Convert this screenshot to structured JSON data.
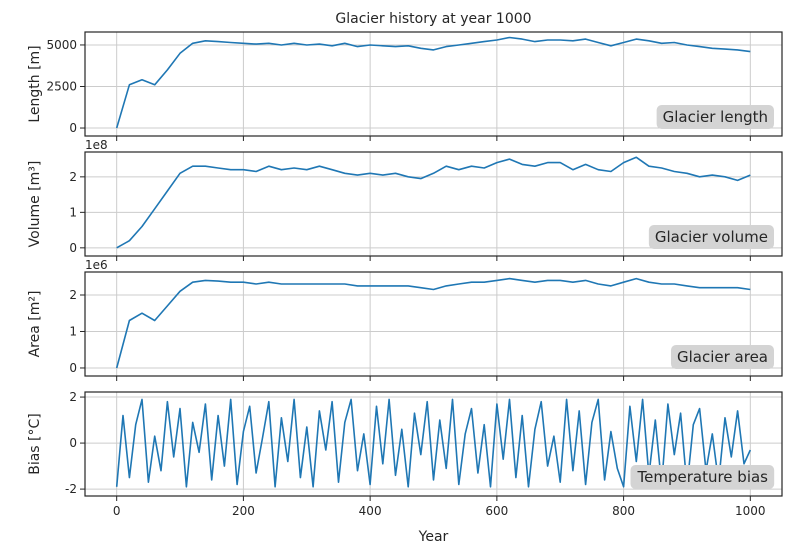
{
  "chart_data": [
    {
      "type": "line",
      "title": "Glacier history at year 1000",
      "ylabel": "Length [m]",
      "annotation": "Glacier length",
      "color": "#1f77b4",
      "grid": true,
      "xlim": [
        -50,
        1050
      ],
      "xticks": [
        0,
        200,
        400,
        600,
        800,
        1000
      ],
      "ylim": [
        -480,
        5780
      ],
      "yticks": [
        0,
        2500,
        5000
      ],
      "x": [
        0,
        20,
        40,
        60,
        80,
        100,
        120,
        140,
        160,
        180,
        200,
        220,
        240,
        260,
        280,
        300,
        320,
        340,
        360,
        380,
        400,
        420,
        440,
        460,
        480,
        500,
        520,
        540,
        560,
        580,
        600,
        620,
        640,
        660,
        680,
        700,
        720,
        740,
        760,
        780,
        800,
        820,
        840,
        860,
        880,
        900,
        920,
        940,
        960,
        980,
        1000
      ],
      "values": [
        0,
        2600,
        2900,
        2600,
        3500,
        4500,
        5100,
        5250,
        5200,
        5150,
        5100,
        5050,
        5100,
        5000,
        5100,
        5000,
        5050,
        4950,
        5100,
        4900,
        5000,
        4950,
        4900,
        4950,
        4800,
        4700,
        4900,
        5000,
        5100,
        5200,
        5300,
        5450,
        5350,
        5200,
        5300,
        5300,
        5250,
        5350,
        5150,
        4950,
        5150,
        5350,
        5250,
        5100,
        5150,
        5000,
        4900,
        4800,
        4750,
        4700,
        4600
      ]
    },
    {
      "type": "line",
      "ylabel": "Volume [m³]",
      "offset_label": "1e8",
      "annotation": "Glacier volume",
      "color": "#1f77b4",
      "grid": true,
      "xlim": [
        -50,
        1050
      ],
      "xticks": [
        0,
        200,
        400,
        600,
        800,
        1000
      ],
      "ylim": [
        -0.23,
        2.7
      ],
      "yticks": [
        0,
        1,
        2
      ],
      "x": [
        0,
        20,
        40,
        60,
        80,
        100,
        120,
        140,
        160,
        180,
        200,
        220,
        240,
        260,
        280,
        300,
        320,
        340,
        360,
        380,
        400,
        420,
        440,
        460,
        480,
        500,
        520,
        540,
        560,
        580,
        600,
        620,
        640,
        660,
        680,
        700,
        720,
        740,
        760,
        780,
        800,
        820,
        840,
        860,
        880,
        900,
        920,
        940,
        960,
        980,
        1000
      ],
      "values": [
        0,
        0.2,
        0.6,
        1.1,
        1.6,
        2.1,
        2.3,
        2.3,
        2.25,
        2.2,
        2.2,
        2.15,
        2.3,
        2.2,
        2.25,
        2.2,
        2.3,
        2.2,
        2.1,
        2.05,
        2.1,
        2.05,
        2.1,
        2.0,
        1.95,
        2.1,
        2.3,
        2.2,
        2.3,
        2.25,
        2.4,
        2.5,
        2.35,
        2.3,
        2.4,
        2.4,
        2.2,
        2.35,
        2.2,
        2.15,
        2.4,
        2.55,
        2.3,
        2.25,
        2.15,
        2.1,
        2.0,
        2.05,
        2.0,
        1.9,
        2.05
      ]
    },
    {
      "type": "line",
      "ylabel": "Area [m²]",
      "offset_label": "1e6",
      "annotation": "Glacier area",
      "color": "#1f77b4",
      "grid": true,
      "xlim": [
        -50,
        1050
      ],
      "xticks": [
        0,
        200,
        400,
        600,
        800,
        1000
      ],
      "ylim": [
        -0.22,
        2.63
      ],
      "yticks": [
        0,
        1,
        2
      ],
      "x": [
        0,
        20,
        40,
        60,
        80,
        100,
        120,
        140,
        160,
        180,
        200,
        220,
        240,
        260,
        280,
        300,
        320,
        340,
        360,
        380,
        400,
        420,
        440,
        460,
        480,
        500,
        520,
        540,
        560,
        580,
        600,
        620,
        640,
        660,
        680,
        700,
        720,
        740,
        760,
        780,
        800,
        820,
        840,
        860,
        880,
        900,
        920,
        940,
        960,
        980,
        1000
      ],
      "values": [
        0,
        1.3,
        1.5,
        1.3,
        1.7,
        2.1,
        2.35,
        2.4,
        2.38,
        2.35,
        2.35,
        2.3,
        2.35,
        2.3,
        2.3,
        2.3,
        2.3,
        2.3,
        2.3,
        2.25,
        2.25,
        2.25,
        2.25,
        2.25,
        2.2,
        2.15,
        2.25,
        2.3,
        2.35,
        2.35,
        2.4,
        2.45,
        2.4,
        2.35,
        2.4,
        2.4,
        2.35,
        2.4,
        2.3,
        2.25,
        2.35,
        2.45,
        2.35,
        2.3,
        2.3,
        2.25,
        2.2,
        2.2,
        2.2,
        2.2,
        2.15
      ]
    },
    {
      "type": "line",
      "ylabel": "Bias [°C]",
      "xlabel": "Year",
      "annotation": "Temperature bias",
      "color": "#1f77b4",
      "grid": true,
      "xlim": [
        -50,
        1050
      ],
      "xticks": [
        0,
        200,
        400,
        600,
        800,
        1000
      ],
      "ylim": [
        -2.3,
        2.22
      ],
      "yticks": [
        -2,
        0,
        2
      ],
      "x": [
        0,
        10,
        20,
        30,
        40,
        50,
        60,
        70,
        80,
        90,
        100,
        110,
        120,
        130,
        140,
        150,
        160,
        170,
        180,
        190,
        200,
        210,
        220,
        230,
        240,
        250,
        260,
        270,
        280,
        290,
        300,
        310,
        320,
        330,
        340,
        350,
        360,
        370,
        380,
        390,
        400,
        410,
        420,
        430,
        440,
        450,
        460,
        470,
        480,
        490,
        500,
        510,
        520,
        530,
        540,
        550,
        560,
        570,
        580,
        590,
        600,
        610,
        620,
        630,
        640,
        650,
        660,
        670,
        680,
        690,
        700,
        710,
        720,
        730,
        740,
        750,
        760,
        770,
        780,
        790,
        800,
        810,
        820,
        830,
        840,
        850,
        860,
        870,
        880,
        890,
        900,
        910,
        920,
        930,
        940,
        950,
        960,
        970,
        980,
        990,
        1000
      ],
      "values": [
        -1.9,
        1.2,
        -1.5,
        0.8,
        1.9,
        -1.7,
        0.3,
        -1.2,
        1.8,
        -0.6,
        1.5,
        -1.9,
        0.9,
        -0.4,
        1.7,
        -1.6,
        1.2,
        -1.0,
        1.9,
        -1.8,
        0.5,
        1.6,
        -1.3,
        0.2,
        1.8,
        -1.9,
        1.1,
        -0.8,
        1.9,
        -1.5,
        0.7,
        -1.9,
        1.4,
        -0.3,
        1.8,
        -1.7,
        0.9,
        1.9,
        -1.2,
        0.4,
        -1.8,
        1.6,
        -0.9,
        1.9,
        -1.4,
        0.6,
        -1.9,
        1.3,
        -0.5,
        1.8,
        -1.6,
        1.0,
        -1.1,
        1.9,
        -1.8,
        0.4,
        1.5,
        -1.3,
        0.8,
        -1.9,
        1.7,
        -0.7,
        1.9,
        -1.5,
        1.2,
        -1.9,
        0.6,
        1.8,
        -1.0,
        0.3,
        -1.7,
        1.9,
        -1.2,
        1.4,
        -1.8,
        0.9,
        1.9,
        -1.6,
        0.5,
        -1.1,
        -1.9,
        1.6,
        -0.8,
        1.9,
        -1.4,
        1.0,
        -1.8,
        1.7,
        -0.5,
        1.3,
        -1.9,
        0.8,
        1.5,
        -1.2,
        0.4,
        -1.7,
        1.1,
        -0.6,
        1.4,
        -0.9,
        -0.3
      ]
    }
  ]
}
